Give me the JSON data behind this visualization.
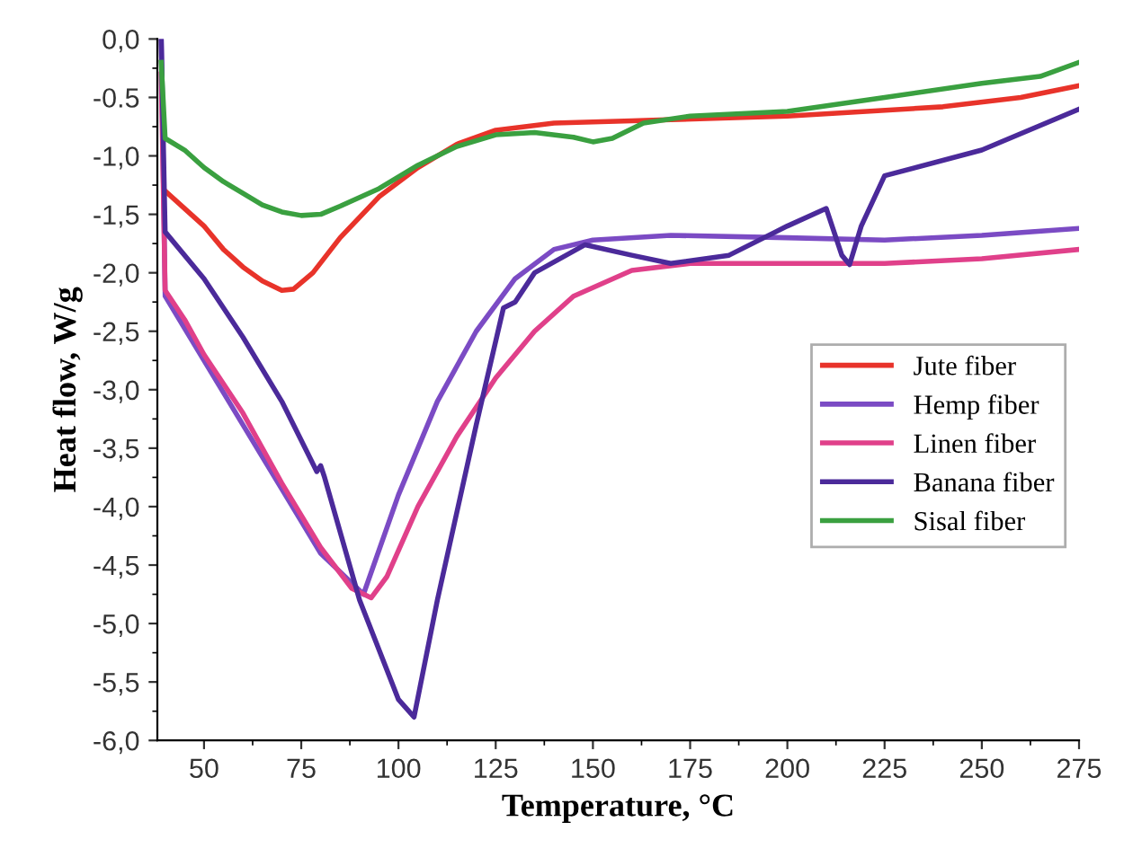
{
  "chart_data": {
    "type": "line",
    "xlabel": "Temperature, °C",
    "ylabel": "Heat flow, W/g",
    "xlim": [
      38,
      275
    ],
    "ylim": [
      -6,
      0
    ],
    "xticks": [
      50,
      75,
      100,
      125,
      150,
      175,
      200,
      225,
      250,
      275
    ],
    "yticks": [
      {
        "value": 0,
        "label": "0,0"
      },
      {
        "value": -0.5,
        "label": "-0.5"
      },
      {
        "value": -1,
        "label": "-1,0"
      },
      {
        "value": -1.5,
        "label": "-1,5"
      },
      {
        "value": -2,
        "label": "-2,0"
      },
      {
        "value": -2.5,
        "label": "-2,5"
      },
      {
        "value": -3,
        "label": "-3,0"
      },
      {
        "value": -3.5,
        "label": "-3,5"
      },
      {
        "value": -4,
        "label": "-4,0"
      },
      {
        "value": -4.5,
        "label": "-4,5"
      },
      {
        "value": -5,
        "label": "-5,0"
      },
      {
        "value": -5.5,
        "label": "-5,5"
      },
      {
        "value": -6,
        "label": "-6,0"
      }
    ],
    "grid": false,
    "legend": "center right",
    "marker": "none",
    "line_style": "solid",
    "series": [
      {
        "name": "Jute fiber",
        "color": "#e8332a",
        "x": [
          40,
          45,
          50,
          55,
          60,
          65,
          70,
          73,
          78,
          85,
          95,
          105,
          115,
          125,
          140,
          160,
          200,
          240,
          260,
          275
        ],
        "values": [
          -1.3,
          -1.45,
          -1.6,
          -1.8,
          -1.95,
          -2.07,
          -2.15,
          -2.14,
          -2.0,
          -1.7,
          -1.35,
          -1.1,
          -0.9,
          -0.78,
          -0.72,
          -0.7,
          -0.66,
          -0.58,
          -0.5,
          -0.4
        ]
      },
      {
        "name": "Hemp fiber",
        "color": "#7b4bc4",
        "x": [
          39,
          40,
          50,
          60,
          70,
          80,
          91,
          100,
          110,
          120,
          130,
          140,
          150,
          170,
          200,
          225,
          250,
          275
        ],
        "values": [
          0,
          -2.2,
          -2.75,
          -3.3,
          -3.85,
          -4.4,
          -4.75,
          -3.9,
          -3.1,
          -2.5,
          -2.05,
          -1.8,
          -1.72,
          -1.68,
          -1.7,
          -1.72,
          -1.68,
          -1.62
        ]
      },
      {
        "name": "Linen fiber",
        "color": "#e0408a",
        "x": [
          39,
          40,
          45,
          50,
          60,
          70,
          80,
          88,
          93,
          97,
          105,
          115,
          125,
          135,
          145,
          160,
          175,
          200,
          225,
          250,
          275
        ],
        "values": [
          -0.3,
          -2.15,
          -2.4,
          -2.7,
          -3.2,
          -3.8,
          -4.35,
          -4.7,
          -4.78,
          -4.6,
          -4.0,
          -3.4,
          -2.9,
          -2.5,
          -2.2,
          -1.98,
          -1.92,
          -1.92,
          -1.92,
          -1.88,
          -1.8
        ]
      },
      {
        "name": "Banana fiber",
        "color": "#4b2a9a",
        "x": [
          39,
          40,
          50,
          60,
          70,
          79,
          80,
          81,
          90,
          100,
          104,
          110,
          120,
          127,
          130,
          135,
          148,
          160,
          170,
          185,
          200,
          210,
          214,
          216,
          219,
          225,
          250,
          275
        ],
        "values": [
          0,
          -1.65,
          -2.05,
          -2.55,
          -3.1,
          -3.7,
          -3.65,
          -3.75,
          -4.8,
          -5.65,
          -5.8,
          -4.8,
          -3.3,
          -2.3,
          -2.25,
          -2.0,
          -1.76,
          -1.85,
          -1.92,
          -1.85,
          -1.6,
          -1.45,
          -1.85,
          -1.93,
          -1.6,
          -1.17,
          -0.95,
          -0.6
        ]
      },
      {
        "name": "Sisal fiber",
        "color": "#3aa040",
        "x": [
          39,
          40,
          45,
          50,
          55,
          60,
          65,
          70,
          75,
          80,
          85,
          95,
          105,
          115,
          125,
          135,
          145,
          150,
          155,
          163,
          175,
          200,
          225,
          250,
          265,
          275
        ],
        "values": [
          -0.2,
          -0.85,
          -0.95,
          -1.1,
          -1.22,
          -1.32,
          -1.42,
          -1.48,
          -1.51,
          -1.5,
          -1.43,
          -1.28,
          -1.08,
          -0.92,
          -0.82,
          -0.8,
          -0.84,
          -0.88,
          -0.85,
          -0.72,
          -0.66,
          -0.62,
          -0.5,
          -0.38,
          -0.32,
          -0.2
        ]
      }
    ]
  }
}
